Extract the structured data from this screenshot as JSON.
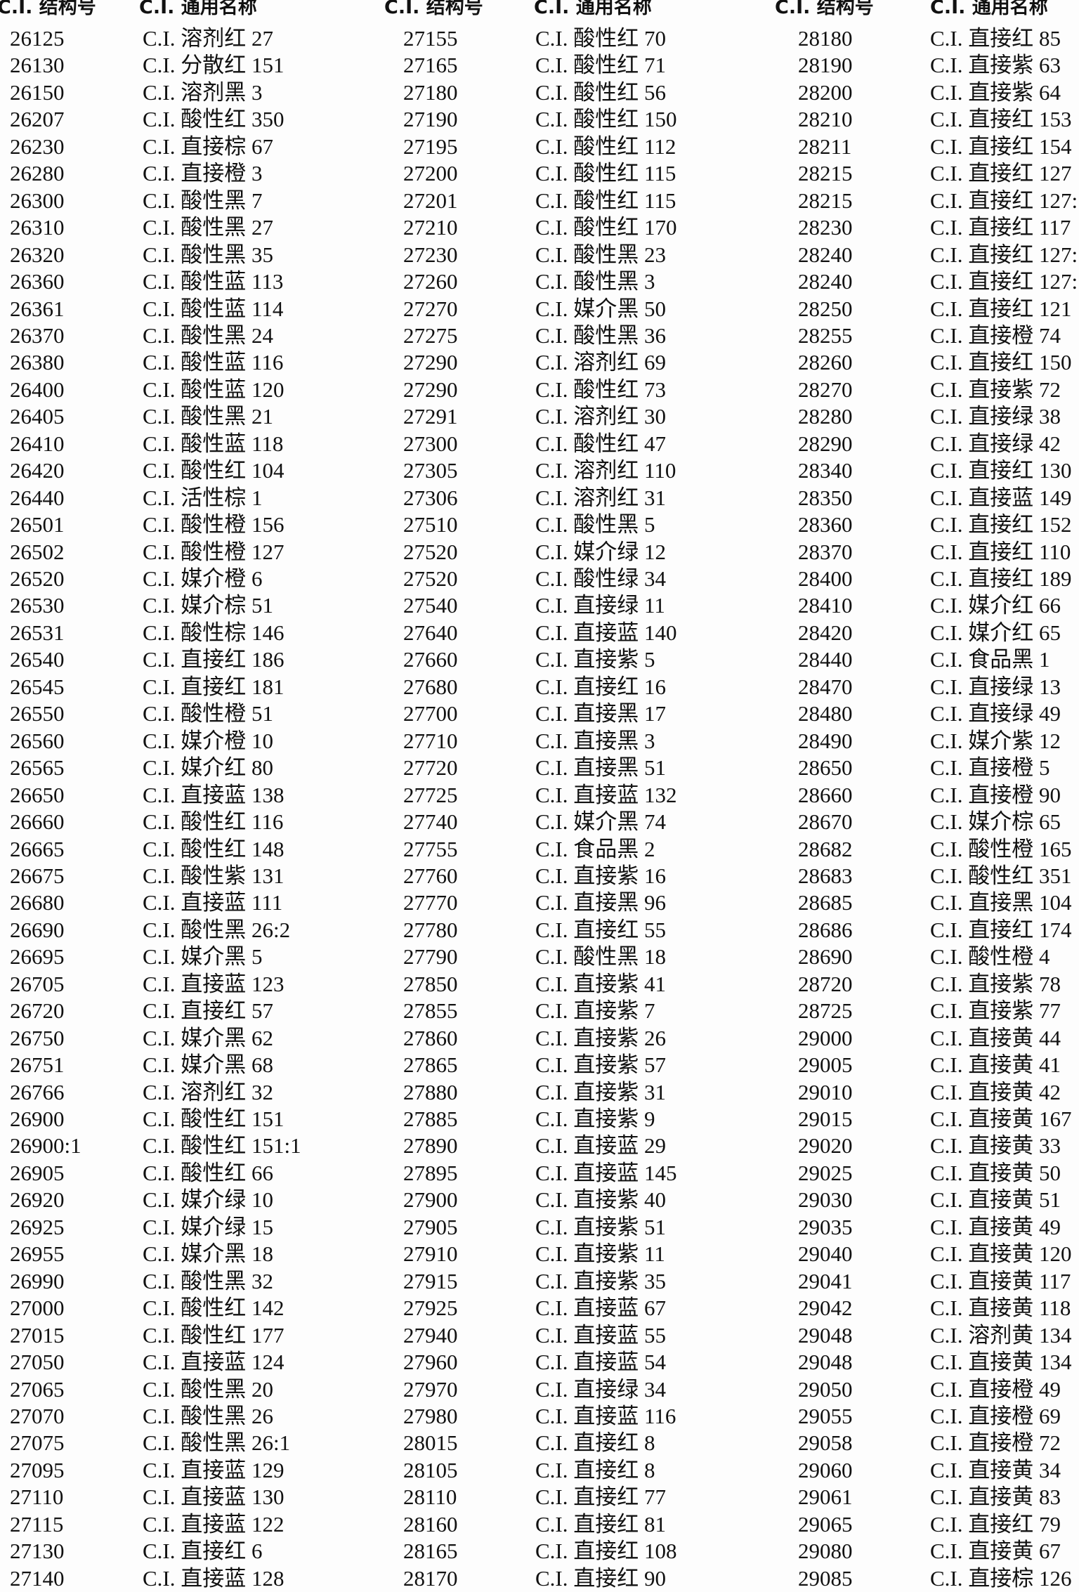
{
  "headers": {
    "code": "C.I. 结构号",
    "name": "C.I. 通用名称"
  },
  "groups": [
    {
      "rows": [
        [
          "26125",
          "C.I. 溶剂红 27"
        ],
        [
          "26130",
          "C.I. 分散红 151"
        ],
        [
          "26150",
          "C.I. 溶剂黑 3"
        ],
        [
          "26207",
          "C.I. 酸性红 350"
        ],
        [
          "26230",
          "C.I. 直接棕 67"
        ],
        [
          "26280",
          "C.I. 直接橙 3"
        ],
        [
          "26300",
          "C.I. 酸性黑 7"
        ],
        [
          "26310",
          "C.I. 酸性黑 27"
        ],
        [
          "26320",
          "C.I. 酸性黑 35"
        ],
        [
          "26360",
          "C.I. 酸性蓝 113"
        ],
        [
          "26361",
          "C.I. 酸性蓝 114"
        ],
        [
          "26370",
          "C.I. 酸性黑 24"
        ],
        [
          "26380",
          "C.I. 酸性蓝 116"
        ],
        [
          "26400",
          "C.I. 酸性蓝 120"
        ],
        [
          "26405",
          "C.I. 酸性黑 21"
        ],
        [
          "26410",
          "C.I. 酸性蓝 118"
        ],
        [
          "26420",
          "C.I. 酸性红 104"
        ],
        [
          "26440",
          "C.I. 活性棕 1"
        ],
        [
          "26501",
          "C.I. 酸性橙 156"
        ],
        [
          "26502",
          "C.I. 酸性橙 127"
        ],
        [
          "26520",
          "C.I. 媒介橙 6"
        ],
        [
          "26530",
          "C.I. 媒介棕 51"
        ],
        [
          "26531",
          "C.I. 酸性棕 146"
        ],
        [
          "26540",
          "C.I. 直接红 186"
        ],
        [
          "26545",
          "C.I. 直接红 181"
        ],
        [
          "26550",
          "C.I. 酸性橙 51"
        ],
        [
          "26560",
          "C.I. 媒介橙 10"
        ],
        [
          "26565",
          "C.I. 媒介红 80"
        ],
        [
          "26650",
          "C.I. 直接蓝 138"
        ],
        [
          "26660",
          "C.I. 酸性红 116"
        ],
        [
          "26665",
          "C.I. 酸性红 148"
        ],
        [
          "26675",
          "C.I. 酸性紫 131"
        ],
        [
          "26680",
          "C.I. 直接蓝 111"
        ],
        [
          "26690",
          "C.I. 酸性黑 26:2"
        ],
        [
          "26695",
          "C.I. 媒介黑 5"
        ],
        [
          "26705",
          "C.I. 直接蓝 123"
        ],
        [
          "26720",
          "C.I. 直接红 57"
        ],
        [
          "26750",
          "C.I. 媒介黑 62"
        ],
        [
          "26751",
          "C.I. 媒介黑 68"
        ],
        [
          "26766",
          "C.I. 溶剂红 32"
        ],
        [
          "26900",
          "C.I. 酸性红 151"
        ],
        [
          "26900:1",
          "C.I. 酸性红 151:1"
        ],
        [
          "26905",
          "C.I. 酸性红 66"
        ],
        [
          "26920",
          "C.I. 媒介绿 10"
        ],
        [
          "26925",
          "C.I. 媒介绿 15"
        ],
        [
          "26955",
          "C.I. 媒介黑 18"
        ],
        [
          "26990",
          "C.I. 酸性黑 32"
        ],
        [
          "27000",
          "C.I. 酸性红 142"
        ],
        [
          "27015",
          "C.I. 酸性红 177"
        ],
        [
          "27050",
          "C.I. 直接蓝 124"
        ],
        [
          "27065",
          "C.I. 酸性黑 20"
        ],
        [
          "27070",
          "C.I. 酸性黑 26"
        ],
        [
          "27075",
          "C.I. 酸性黑 26:1"
        ],
        [
          "27095",
          "C.I. 直接蓝 129"
        ],
        [
          "27110",
          "C.I. 直接蓝 130"
        ],
        [
          "27115",
          "C.I. 直接蓝 122"
        ],
        [
          "27130",
          "C.I. 直接红 6"
        ],
        [
          "27140",
          "C.I. 直接蓝 128"
        ]
      ]
    },
    {
      "rows": [
        [
          "27155",
          "C.I. 酸性红 70"
        ],
        [
          "27165",
          "C.I. 酸性红 71"
        ],
        [
          "27180",
          "C.I. 酸性红 56"
        ],
        [
          "27190",
          "C.I. 酸性红 150"
        ],
        [
          "27195",
          "C.I. 酸性红 112"
        ],
        [
          "27200",
          "C.I. 酸性红 115"
        ],
        [
          "27201",
          "C.I. 酸性红 115"
        ],
        [
          "27210",
          "C.I. 酸性红 170"
        ],
        [
          "27230",
          "C.I. 酸性黑 23"
        ],
        [
          "27260",
          "C.I. 酸性黑 3"
        ],
        [
          "27270",
          "C.I. 媒介黑 50"
        ],
        [
          "27275",
          "C.I. 酸性黑 36"
        ],
        [
          "27290",
          "C.I. 溶剂红 69"
        ],
        [
          "27290",
          "C.I. 酸性红 73"
        ],
        [
          "27291",
          "C.I. 溶剂红 30"
        ],
        [
          "27300",
          "C.I. 酸性红 47"
        ],
        [
          "27305",
          "C.I. 溶剂红 110"
        ],
        [
          "27306",
          "C.I. 溶剂红 31"
        ],
        [
          "27510",
          "C.I. 酸性黑 5"
        ],
        [
          "27520",
          "C.I. 媒介绿 12"
        ],
        [
          "27520",
          "C.I. 酸性绿 34"
        ],
        [
          "27540",
          "C.I. 直接绿 11"
        ],
        [
          "27640",
          "C.I. 直接蓝 140"
        ],
        [
          "27660",
          "C.I. 直接紫 5"
        ],
        [
          "27680",
          "C.I. 直接红 16"
        ],
        [
          "27700",
          "C.I. 直接黑 17"
        ],
        [
          "27710",
          "C.I. 直接黑 3"
        ],
        [
          "27720",
          "C.I. 直接黑 51"
        ],
        [
          "27725",
          "C.I. 直接蓝 132"
        ],
        [
          "27740",
          "C.I. 媒介黑 74"
        ],
        [
          "27755",
          "C.I. 食品黑 2"
        ],
        [
          "27760",
          "C.I. 直接紫 16"
        ],
        [
          "27770",
          "C.I. 直接黑 96"
        ],
        [
          "27780",
          "C.I. 直接红 55"
        ],
        [
          "27790",
          "C.I. 酸性黑 18"
        ],
        [
          "27850",
          "C.I. 直接紫 41"
        ],
        [
          "27855",
          "C.I. 直接紫 7"
        ],
        [
          "27860",
          "C.I. 直接紫 26"
        ],
        [
          "27865",
          "C.I. 直接紫 57"
        ],
        [
          "27880",
          "C.I. 直接紫 31"
        ],
        [
          "27885",
          "C.I. 直接紫 9"
        ],
        [
          "27890",
          "C.I. 直接蓝 29"
        ],
        [
          "27895",
          "C.I. 直接蓝 145"
        ],
        [
          "27900",
          "C.I. 直接紫 40"
        ],
        [
          "27905",
          "C.I. 直接紫 51"
        ],
        [
          "27910",
          "C.I. 直接紫 11"
        ],
        [
          "27915",
          "C.I. 直接紫 35"
        ],
        [
          "27925",
          "C.I. 直接蓝 67"
        ],
        [
          "27940",
          "C.I. 直接蓝 55"
        ],
        [
          "27960",
          "C.I. 直接蓝 54"
        ],
        [
          "27970",
          "C.I. 直接绿 34"
        ],
        [
          "27980",
          "C.I. 直接蓝 116"
        ],
        [
          "28015",
          "C.I. 直接红 8"
        ],
        [
          "28105",
          "C.I. 直接红 8"
        ],
        [
          "28110",
          "C.I. 直接红 77"
        ],
        [
          "28160",
          "C.I. 直接红 81"
        ],
        [
          "28165",
          "C.I. 直接红 108"
        ],
        [
          "28170",
          "C.I. 直接红 90"
        ]
      ]
    },
    {
      "rows": [
        [
          "28180",
          "C.I. 直接红 85"
        ],
        [
          "28190",
          "C.I. 直接紫 63"
        ],
        [
          "28200",
          "C.I. 直接紫 64"
        ],
        [
          "28210",
          "C.I. 直接红 153"
        ],
        [
          "28211",
          "C.I. 直接红 154"
        ],
        [
          "28215",
          "C.I. 直接红 127"
        ],
        [
          "28215",
          "C.I. 直接红 127:"
        ],
        [
          "28230",
          "C.I. 直接红 117"
        ],
        [
          "28240",
          "C.I. 直接红 127:"
        ],
        [
          "28240",
          "C.I. 直接红 127:"
        ],
        [
          "28250",
          "C.I. 直接红 121"
        ],
        [
          "28255",
          "C.I. 直接橙 74"
        ],
        [
          "28260",
          "C.I. 直接红 150"
        ],
        [
          "28270",
          "C.I. 直接紫 72"
        ],
        [
          "28280",
          "C.I. 直接绿 38"
        ],
        [
          "28290",
          "C.I. 直接绿 42"
        ],
        [
          "28340",
          "C.I. 直接红 130"
        ],
        [
          "28350",
          "C.I. 直接蓝 149"
        ],
        [
          "28360",
          "C.I. 直接红 152"
        ],
        [
          "28370",
          "C.I. 直接红 110"
        ],
        [
          "28400",
          "C.I. 直接红 189"
        ],
        [
          "28410",
          "C.I. 媒介红 66"
        ],
        [
          "28420",
          "C.I. 媒介红 65"
        ],
        [
          "28440",
          "C.I. 食品黑 1"
        ],
        [
          "28470",
          "C.I. 直接绿 13"
        ],
        [
          "28480",
          "C.I. 直接绿 49"
        ],
        [
          "28490",
          "C.I. 媒介紫 12"
        ],
        [
          "28650",
          "C.I. 直接橙 5"
        ],
        [
          "28660",
          "C.I. 直接橙 90"
        ],
        [
          "28670",
          "C.I. 媒介棕 65"
        ],
        [
          "28682",
          "C.I. 酸性橙 165"
        ],
        [
          "28683",
          "C.I. 酸性红 351"
        ],
        [
          "28685",
          "C.I. 直接黑 104"
        ],
        [
          "28686",
          "C.I. 直接红 174"
        ],
        [
          "28690",
          "C.I. 酸性橙 4"
        ],
        [
          "28720",
          "C.I. 直接紫 78"
        ],
        [
          "28725",
          "C.I. 直接紫 77"
        ],
        [
          "29000",
          "C.I. 直接黄 44"
        ],
        [
          "29005",
          "C.I. 直接黄 41"
        ],
        [
          "29010",
          "C.I. 直接黄 42"
        ],
        [
          "29015",
          "C.I. 直接黄 167"
        ],
        [
          "29020",
          "C.I. 直接黄 33"
        ],
        [
          "29025",
          "C.I. 直接黄 50"
        ],
        [
          "29030",
          "C.I. 直接黄 51"
        ],
        [
          "29035",
          "C.I. 直接黄 49"
        ],
        [
          "29040",
          "C.I. 直接黄 120"
        ],
        [
          "29041",
          "C.I. 直接黄 117"
        ],
        [
          "29042",
          "C.I. 直接黄 118"
        ],
        [
          "29048",
          "C.I. 溶剂黄 134"
        ],
        [
          "29048",
          "C.I. 直接黄 134"
        ],
        [
          "29050",
          "C.I. 直接橙 49"
        ],
        [
          "29055",
          "C.I. 直接橙 69"
        ],
        [
          "29058",
          "C.I. 直接橙 72"
        ],
        [
          "29060",
          "C.I. 直接黄 34"
        ],
        [
          "29061",
          "C.I. 直接黄 83"
        ],
        [
          "29065",
          "C.I. 直接红 79"
        ],
        [
          "29080",
          "C.I. 直接黄 67"
        ],
        [
          "29085",
          "C.I. 直接棕 126"
        ]
      ]
    }
  ]
}
